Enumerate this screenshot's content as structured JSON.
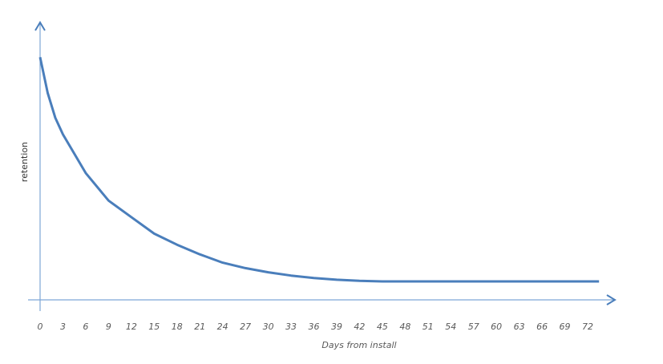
{
  "chart_data": {
    "type": "line",
    "xlabel": "Days from install",
    "ylabel": "retention",
    "x": [
      0,
      1,
      2,
      3,
      6,
      9,
      12,
      15,
      18,
      21,
      24,
      27,
      30,
      33,
      36,
      39,
      42,
      45,
      48,
      51,
      54,
      60,
      66,
      72,
      73.5
    ],
    "series": [
      {
        "color": "#4a7ebb",
        "values": [
          0.88,
          0.75,
          0.66,
          0.6,
          0.46,
          0.36,
          0.3,
          0.24,
          0.2,
          0.165,
          0.135,
          0.115,
          0.1,
          0.088,
          0.079,
          0.073,
          0.069,
          0.067,
          0.067,
          0.067,
          0.067,
          0.067,
          0.067,
          0.067,
          0.067
        ]
      }
    ],
    "xlim": [
      0,
      72
    ],
    "xticks": [
      0,
      3,
      6,
      9,
      12,
      15,
      18,
      21,
      24,
      27,
      30,
      33,
      36,
      39,
      42,
      45,
      48,
      51,
      54,
      57,
      60,
      63,
      66,
      69,
      72
    ],
    "ylim": [
      0,
      1
    ]
  }
}
